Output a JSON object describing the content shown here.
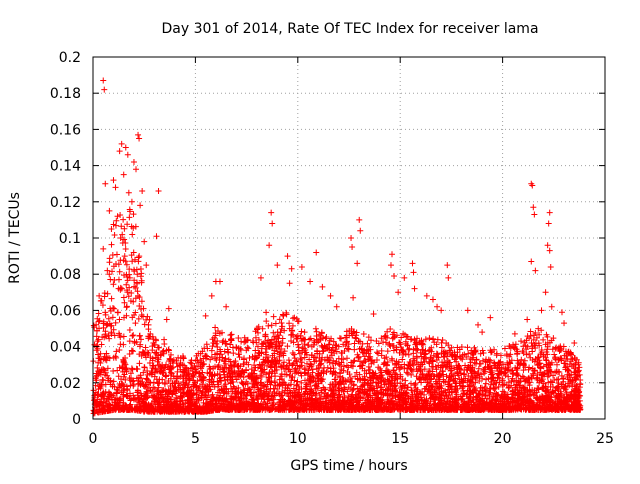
{
  "chart_data": {
    "type": "scatter",
    "title": "Day 301 of 2014, Rate Of TEC Index for receiver lama",
    "xlabel": "GPS time / hours",
    "ylabel": "ROTI / TECUs",
    "xlim": [
      0,
      25
    ],
    "ylim": [
      0,
      0.2
    ],
    "xticks": [
      0,
      5,
      10,
      15,
      20,
      25
    ],
    "xtick_labels": [
      "0",
      "5",
      "10",
      "15",
      "20",
      "25"
    ],
    "yticks": [
      0,
      0.02,
      0.04,
      0.06,
      0.08,
      0.1,
      0.12,
      0.14,
      0.16,
      0.18,
      0.2
    ],
    "ytick_labels": [
      "0",
      "0.02",
      "0.04",
      "0.06",
      "0.08",
      "0.1",
      "0.12",
      "0.14",
      "0.16",
      "0.18",
      "0.2"
    ],
    "grid": true,
    "marker": "plus",
    "color": "#ff0000",
    "series": [
      {
        "name": "ROTI",
        "points": [
          [
            0.5,
            0.187
          ],
          [
            0.55,
            0.182
          ],
          [
            2.2,
            0.157
          ],
          [
            2.25,
            0.155
          ],
          [
            1.4,
            0.152
          ],
          [
            1.3,
            0.148
          ],
          [
            1.6,
            0.15
          ],
          [
            1.7,
            0.146
          ],
          [
            2.0,
            0.142
          ],
          [
            2.1,
            0.138
          ],
          [
            0.6,
            0.13
          ],
          [
            1.0,
            0.132
          ],
          [
            1.1,
            0.128
          ],
          [
            1.5,
            0.135
          ],
          [
            1.75,
            0.125
          ],
          [
            2.4,
            0.126
          ],
          [
            3.2,
            0.126
          ],
          [
            1.9,
            0.12
          ],
          [
            0.8,
            0.115
          ],
          [
            1.2,
            0.112
          ],
          [
            2.3,
            0.118
          ],
          [
            0.9,
            0.105
          ],
          [
            1.35,
            0.1
          ],
          [
            2.5,
            0.098
          ],
          [
            3.1,
            0.101
          ],
          [
            0.5,
            0.094
          ],
          [
            1.55,
            0.09
          ],
          [
            2.05,
            0.088
          ],
          [
            0.7,
            0.082
          ],
          [
            1.8,
            0.078
          ],
          [
            2.6,
            0.085
          ],
          [
            0.3,
            0.068
          ],
          [
            1.25,
            0.072
          ],
          [
            3.7,
            0.061
          ],
          [
            3.6,
            0.055
          ],
          [
            6.0,
            0.076
          ],
          [
            6.2,
            0.076
          ],
          [
            5.8,
            0.068
          ],
          [
            6.5,
            0.062
          ],
          [
            5.5,
            0.057
          ],
          [
            8.7,
            0.114
          ],
          [
            8.75,
            0.108
          ],
          [
            8.6,
            0.096
          ],
          [
            9.0,
            0.085
          ],
          [
            8.2,
            0.078
          ],
          [
            9.5,
            0.09
          ],
          [
            9.7,
            0.083
          ],
          [
            10.2,
            0.084
          ],
          [
            10.6,
            0.076
          ],
          [
            10.9,
            0.092
          ],
          [
            9.6,
            0.075
          ],
          [
            11.2,
            0.073
          ],
          [
            11.6,
            0.068
          ],
          [
            11.9,
            0.062
          ],
          [
            12.6,
            0.1
          ],
          [
            12.65,
            0.095
          ],
          [
            12.9,
            0.086
          ],
          [
            13.0,
            0.11
          ],
          [
            13.05,
            0.104
          ],
          [
            12.7,
            0.067
          ],
          [
            13.7,
            0.058
          ],
          [
            14.6,
            0.091
          ],
          [
            14.55,
            0.085
          ],
          [
            14.7,
            0.079
          ],
          [
            15.2,
            0.078
          ],
          [
            15.6,
            0.086
          ],
          [
            15.65,
            0.081
          ],
          [
            15.7,
            0.072
          ],
          [
            14.9,
            0.07
          ],
          [
            16.3,
            0.068
          ],
          [
            16.6,
            0.066
          ],
          [
            16.8,
            0.062
          ],
          [
            17.0,
            0.06
          ],
          [
            17.3,
            0.085
          ],
          [
            17.35,
            0.078
          ],
          [
            18.3,
            0.06
          ],
          [
            18.8,
            0.052
          ],
          [
            19.4,
            0.056
          ],
          [
            19.0,
            0.048
          ],
          [
            21.4,
            0.13
          ],
          [
            21.45,
            0.129
          ],
          [
            21.5,
            0.117
          ],
          [
            21.55,
            0.113
          ],
          [
            21.4,
            0.087
          ],
          [
            21.6,
            0.082
          ],
          [
            22.3,
            0.114
          ],
          [
            22.25,
            0.108
          ],
          [
            22.2,
            0.096
          ],
          [
            22.3,
            0.093
          ],
          [
            22.35,
            0.084
          ],
          [
            22.1,
            0.07
          ],
          [
            22.4,
            0.062
          ],
          [
            21.9,
            0.06
          ],
          [
            22.9,
            0.059
          ],
          [
            23.0,
            0.053
          ],
          [
            21.2,
            0.055
          ],
          [
            20.6,
            0.047
          ],
          [
            20.9,
            0.043
          ],
          [
            23.5,
            0.042
          ],
          [
            23.7,
            0.03
          ]
        ]
      }
    ],
    "density_envelope": {
      "description": "dense cloud of ROTI values per hour bin: [hour, min, typical_max]",
      "bins": [
        [
          0.0,
          0.003,
          0.05
        ],
        [
          0.5,
          0.004,
          0.07
        ],
        [
          1.0,
          0.005,
          0.11
        ],
        [
          1.5,
          0.005,
          0.12
        ],
        [
          2.0,
          0.005,
          0.12
        ],
        [
          2.5,
          0.004,
          0.07
        ],
        [
          3.0,
          0.004,
          0.045
        ],
        [
          3.5,
          0.004,
          0.045
        ],
        [
          4.0,
          0.004,
          0.035
        ],
        [
          4.5,
          0.004,
          0.035
        ],
        [
          5.0,
          0.004,
          0.035
        ],
        [
          5.5,
          0.004,
          0.04
        ],
        [
          6.0,
          0.005,
          0.055
        ],
        [
          6.5,
          0.005,
          0.05
        ],
        [
          7.0,
          0.005,
          0.045
        ],
        [
          7.5,
          0.005,
          0.045
        ],
        [
          8.0,
          0.005,
          0.05
        ],
        [
          8.5,
          0.005,
          0.06
        ],
        [
          9.0,
          0.005,
          0.055
        ],
        [
          9.5,
          0.005,
          0.06
        ],
        [
          10.0,
          0.005,
          0.055
        ],
        [
          10.5,
          0.005,
          0.05
        ],
        [
          11.0,
          0.005,
          0.05
        ],
        [
          11.5,
          0.005,
          0.045
        ],
        [
          12.0,
          0.005,
          0.045
        ],
        [
          12.5,
          0.005,
          0.05
        ],
        [
          13.0,
          0.005,
          0.05
        ],
        [
          13.5,
          0.005,
          0.045
        ],
        [
          14.0,
          0.005,
          0.045
        ],
        [
          14.5,
          0.005,
          0.05
        ],
        [
          15.0,
          0.005,
          0.05
        ],
        [
          15.5,
          0.005,
          0.045
        ],
        [
          16.0,
          0.005,
          0.045
        ],
        [
          16.5,
          0.005,
          0.045
        ],
        [
          17.0,
          0.005,
          0.045
        ],
        [
          17.5,
          0.005,
          0.04
        ],
        [
          18.0,
          0.005,
          0.04
        ],
        [
          18.5,
          0.005,
          0.04
        ],
        [
          19.0,
          0.005,
          0.038
        ],
        [
          19.5,
          0.005,
          0.038
        ],
        [
          20.0,
          0.005,
          0.04
        ],
        [
          20.5,
          0.005,
          0.042
        ],
        [
          21.0,
          0.005,
          0.045
        ],
        [
          21.5,
          0.005,
          0.05
        ],
        [
          22.0,
          0.005,
          0.05
        ],
        [
          22.5,
          0.005,
          0.045
        ],
        [
          23.0,
          0.005,
          0.04
        ],
        [
          23.5,
          0.005,
          0.035
        ],
        [
          23.8,
          0.005,
          0.03
        ]
      ]
    }
  }
}
